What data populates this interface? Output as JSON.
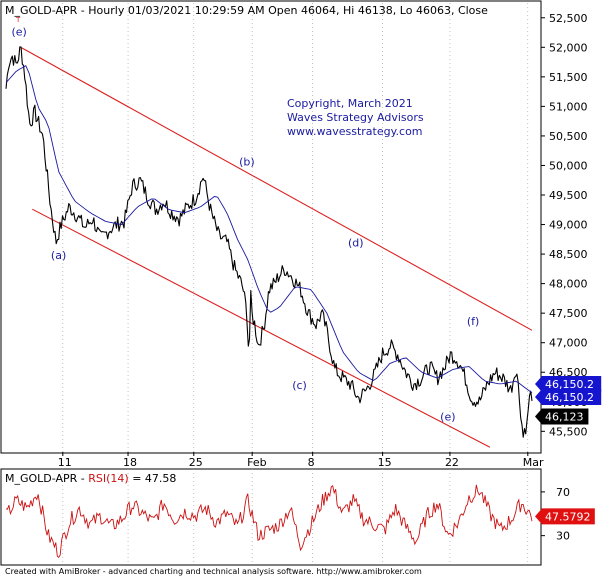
{
  "header": {
    "title": "M_GOLD-APR - Hourly 01/03/2021 10:29:59 AM Open 46064, Hi 46138, Lo 46063, Close",
    "marker": "T"
  },
  "copyright": {
    "line1": "Copyright, March 2021",
    "line2": "Waves Strategy Advisors",
    "line3": "www.wavesstrategy.com"
  },
  "footer": {
    "text": "Created with AmiBroker - advanced charting and technical analysis software. http://www.amibroker.com"
  },
  "colors": {
    "price": "#000000",
    "moving_average": "#1a1aa0",
    "channel": "#dd2222",
    "wave_label": "#1a1aa0",
    "copyright": "#1a1aa0",
    "rsi": "#cc1111",
    "tag_blue": "#1515d0",
    "tag_black": "#000000",
    "tag_red": "#e01010",
    "grid": "#9a9a9a"
  },
  "chart_data": [
    {
      "type": "line",
      "title": "M_GOLD-APR - Hourly",
      "y_ticks": [
        52500,
        52000,
        51500,
        51000,
        50500,
        50000,
        49500,
        49000,
        48500,
        48000,
        47500,
        47000,
        46500,
        46000,
        45500
      ],
      "y_tick_labels": [
        "52,500",
        "52,000",
        "51,500",
        "51,000",
        "50,500",
        "50,000",
        "49,500",
        "49,000",
        "48,500",
        "48,000",
        "47,500",
        "47,000",
        "46,500",
        "46,000",
        "45,500"
      ],
      "ylim": [
        45150,
        52750
      ],
      "x_ticks": [
        "11",
        "18",
        "25",
        "Feb",
        "8",
        "15",
        "22",
        "Mar"
      ],
      "series": [
        {
          "key": "price",
          "t": [
            0,
            0.005,
            0.012,
            0.02,
            0.028,
            0.035,
            0.045,
            0.055,
            0.07,
            0.085,
            0.095,
            0.105,
            0.12,
            0.135,
            0.15,
            0.165,
            0.18,
            0.195,
            0.21,
            0.225,
            0.24,
            0.255,
            0.27,
            0.285,
            0.3,
            0.315,
            0.33,
            0.345,
            0.36,
            0.375,
            0.39,
            0.405,
            0.42,
            0.435,
            0.45,
            0.458,
            0.462,
            0.465,
            0.468,
            0.472,
            0.48,
            0.49,
            0.5,
            0.51,
            0.52,
            0.53,
            0.545,
            0.56,
            0.575,
            0.59,
            0.6,
            0.61,
            0.625,
            0.64,
            0.655,
            0.67,
            0.685,
            0.7,
            0.715,
            0.73,
            0.745,
            0.76,
            0.775,
            0.79,
            0.805,
            0.82,
            0.835,
            0.845,
            0.855,
            0.865,
            0.875,
            0.885,
            0.9,
            0.915,
            0.93,
            0.945,
            0.96,
            0.97,
            0.978,
            0.983,
            0.987,
            0.99,
            0.993,
            0.996,
            1.0
          ],
          "values": [
            51300,
            51750,
            51850,
            51700,
            52000,
            51600,
            50700,
            50900,
            50500,
            49300,
            48700,
            49000,
            49300,
            49150,
            48950,
            49100,
            48750,
            48900,
            49000,
            49050,
            49650,
            49750,
            49450,
            49250,
            49400,
            49200,
            49100,
            49300,
            49450,
            49820,
            49200,
            48800,
            48700,
            48250,
            47950,
            47500,
            46700,
            47800,
            47450,
            47350,
            46950,
            47250,
            47900,
            48000,
            48150,
            48250,
            48100,
            47900,
            47500,
            47300,
            47500,
            47200,
            46550,
            46400,
            46300,
            46050,
            46200,
            46450,
            46800,
            46950,
            46800,
            46500,
            46300,
            46400,
            46600,
            46400,
            46600,
            46800,
            46750,
            46600,
            46350,
            46050,
            46000,
            46300,
            46500,
            46400,
            46200,
            46600,
            45900,
            45400,
            45600,
            45550,
            45900,
            46100,
            46123
          ]
        },
        {
          "key": "moving_average",
          "t": [
            0,
            0.02,
            0.04,
            0.06,
            0.08,
            0.1,
            0.13,
            0.16,
            0.19,
            0.22,
            0.25,
            0.28,
            0.31,
            0.34,
            0.37,
            0.4,
            0.42,
            0.44,
            0.46,
            0.48,
            0.5,
            0.52,
            0.55,
            0.58,
            0.61,
            0.64,
            0.67,
            0.7,
            0.73,
            0.76,
            0.79,
            0.82,
            0.85,
            0.88,
            0.91,
            0.94,
            0.97,
            1.0
          ],
          "values": [
            51400,
            51600,
            51700,
            51000,
            50700,
            49900,
            49400,
            49200,
            49050,
            49000,
            49300,
            49450,
            49250,
            49200,
            49300,
            49500,
            49200,
            48750,
            48400,
            47900,
            47500,
            47600,
            47950,
            47900,
            47500,
            46850,
            46500,
            46350,
            46650,
            46750,
            46500,
            46400,
            46550,
            46600,
            46350,
            46300,
            46350,
            46150
          ]
        }
      ],
      "channel": {
        "upper_line": [
          {
            "t": 0.03,
            "value": 51990
          },
          {
            "t": 1.0,
            "value": 47210
          }
        ],
        "lower_line": [
          {
            "t": 0.05,
            "value": 49260
          },
          {
            "t": 0.92,
            "value": 45230
          }
        ]
      },
      "wave_labels": [
        {
          "label": "(e)",
          "t": 0.025,
          "value": 52200
        },
        {
          "label": "(a)",
          "t": 0.1,
          "value": 48420
        },
        {
          "label": "(b)",
          "t": 0.458,
          "value": 50000
        },
        {
          "label": "(c)",
          "t": 0.558,
          "value": 46220
        },
        {
          "label": "(d)",
          "t": 0.665,
          "value": 48630
        },
        {
          "label": "(e)",
          "t": 0.84,
          "value": 45680
        },
        {
          "label": "(f)",
          "t": 0.888,
          "value": 47300
        }
      ],
      "price_tags": [
        {
          "label": "46,150.2",
          "value": 46300,
          "style": "tag_blue"
        },
        {
          "label": "46,150.2",
          "value": 46080,
          "style": "tag_blue"
        },
        {
          "label": "46,123",
          "value": 45750,
          "style": "tag_black"
        }
      ]
    },
    {
      "type": "line",
      "title": "M_GOLD-APR - RSI(14) = 47.58",
      "title_prefix": "M_GOLD-APR - ",
      "title_rsi": "RSI(14)",
      "title_value": " = 47.58",
      "y_ticks": [
        70,
        30
      ],
      "ylim": [
        5,
        90
      ],
      "series": [
        {
          "key": "rsi",
          "t": [
            0,
            0.02,
            0.04,
            0.06,
            0.08,
            0.1,
            0.12,
            0.14,
            0.16,
            0.18,
            0.2,
            0.22,
            0.24,
            0.26,
            0.28,
            0.3,
            0.32,
            0.34,
            0.36,
            0.38,
            0.4,
            0.42,
            0.44,
            0.46,
            0.48,
            0.5,
            0.52,
            0.54,
            0.56,
            0.58,
            0.6,
            0.62,
            0.64,
            0.66,
            0.68,
            0.7,
            0.72,
            0.74,
            0.76,
            0.78,
            0.8,
            0.82,
            0.84,
            0.86,
            0.88,
            0.9,
            0.92,
            0.94,
            0.96,
            0.98,
            1.0
          ],
          "values": [
            48,
            62,
            55,
            70,
            30,
            15,
            42,
            55,
            40,
            48,
            38,
            45,
            58,
            50,
            42,
            60,
            45,
            52,
            48,
            55,
            42,
            50,
            38,
            62,
            30,
            35,
            40,
            55,
            22,
            40,
            60,
            75,
            50,
            62,
            45,
            40,
            35,
            55,
            38,
            25,
            48,
            60,
            30,
            42,
            65,
            72,
            50,
            35,
            45,
            60,
            47.58
          ]
        }
      ],
      "price_tags": [
        {
          "label": "47.5792",
          "value": 47.58,
          "style": "tag_red"
        }
      ]
    }
  ]
}
